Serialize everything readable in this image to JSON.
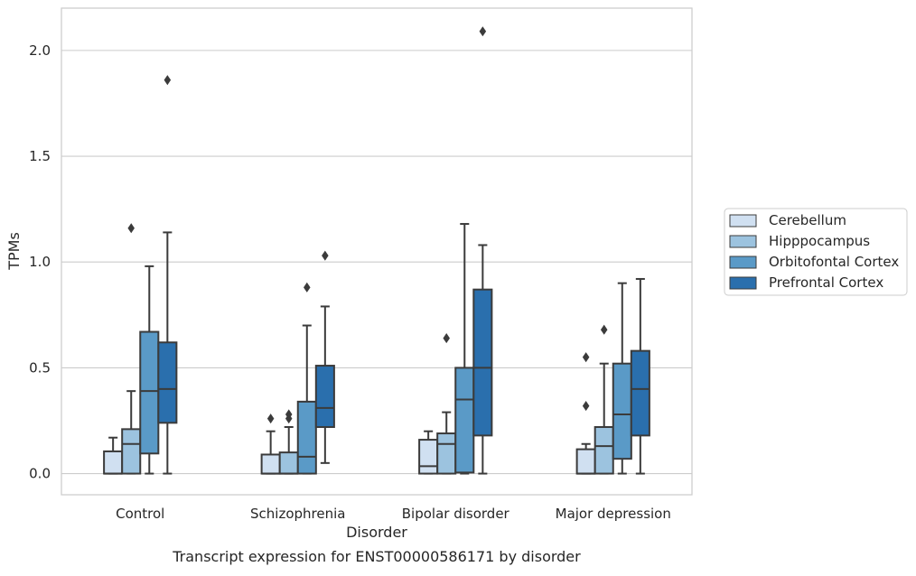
{
  "chart_data": {
    "type": "box",
    "caption": "Transcript expression for ENST00000586171 by disorder",
    "xlabel": "Disorder",
    "ylabel": "TPMs",
    "ylim": [
      -0.1,
      2.2
    ],
    "yticks": [
      0.0,
      0.5,
      1.0,
      1.5,
      2.0
    ],
    "ytick_labels": [
      "0.0",
      "0.5",
      "1.0",
      "1.5",
      "2.0"
    ],
    "grid": "horizontal",
    "legend_position": "right",
    "categories": [
      "Control",
      "Schizophrenia",
      "Bipolar disorder",
      "Major depression"
    ],
    "series": [
      {
        "name": "Cerebellum",
        "color": "#d0e0f1",
        "boxes": [
          {
            "whislo": 0.0,
            "q1": 0.0,
            "med": 0.0,
            "q3": 0.105,
            "whishi": 0.17,
            "fliers": []
          },
          {
            "whislo": 0.0,
            "q1": 0.0,
            "med": 0.0,
            "q3": 0.09,
            "whishi": 0.2,
            "fliers": [
              0.26
            ]
          },
          {
            "whislo": 0.0,
            "q1": 0.0,
            "med": 0.035,
            "q3": 0.16,
            "whishi": 0.2,
            "fliers": []
          },
          {
            "whislo": 0.0,
            "q1": 0.0,
            "med": 0.0,
            "q3": 0.115,
            "whishi": 0.14,
            "fliers": [
              0.32,
              0.55
            ]
          }
        ]
      },
      {
        "name": "Hipppocampus",
        "color": "#9cc3df",
        "boxes": [
          {
            "whislo": 0.0,
            "q1": 0.0,
            "med": 0.14,
            "q3": 0.21,
            "whishi": 0.39,
            "fliers": [
              1.16
            ]
          },
          {
            "whislo": 0.0,
            "q1": 0.0,
            "med": 0.0,
            "q3": 0.1,
            "whishi": 0.22,
            "fliers": [
              0.26,
              0.28
            ]
          },
          {
            "whislo": 0.0,
            "q1": 0.0,
            "med": 0.14,
            "q3": 0.19,
            "whishi": 0.29,
            "fliers": [
              0.64
            ]
          },
          {
            "whislo": 0.0,
            "q1": 0.0,
            "med": 0.13,
            "q3": 0.22,
            "whishi": 0.52,
            "fliers": [
              0.68
            ]
          }
        ]
      },
      {
        "name": "Orbitofontal Cortex",
        "color": "#5a9ac7",
        "boxes": [
          {
            "whislo": 0.0,
            "q1": 0.095,
            "med": 0.39,
            "q3": 0.67,
            "whishi": 0.98,
            "fliers": []
          },
          {
            "whislo": 0.0,
            "q1": 0.0,
            "med": 0.08,
            "q3": 0.34,
            "whishi": 0.7,
            "fliers": [
              0.88
            ]
          },
          {
            "whislo": 0.0,
            "q1": 0.005,
            "med": 0.35,
            "q3": 0.5,
            "whishi": 1.18,
            "fliers": []
          },
          {
            "whislo": 0.0,
            "q1": 0.07,
            "med": 0.28,
            "q3": 0.52,
            "whishi": 0.9,
            "fliers": []
          }
        ]
      },
      {
        "name": "Prefrontal Cortex",
        "color": "#2a6fad",
        "boxes": [
          {
            "whislo": 0.0,
            "q1": 0.24,
            "med": 0.4,
            "q3": 0.62,
            "whishi": 1.14,
            "fliers": [
              1.86
            ]
          },
          {
            "whislo": 0.05,
            "q1": 0.22,
            "med": 0.31,
            "q3": 0.51,
            "whishi": 0.79,
            "fliers": [
              1.03
            ]
          },
          {
            "whislo": 0.0,
            "q1": 0.18,
            "med": 0.5,
            "q3": 0.87,
            "whishi": 1.08,
            "fliers": [
              2.09
            ]
          },
          {
            "whislo": 0.0,
            "q1": 0.18,
            "med": 0.4,
            "q3": 0.58,
            "whishi": 0.92,
            "fliers": []
          }
        ]
      }
    ]
  }
}
